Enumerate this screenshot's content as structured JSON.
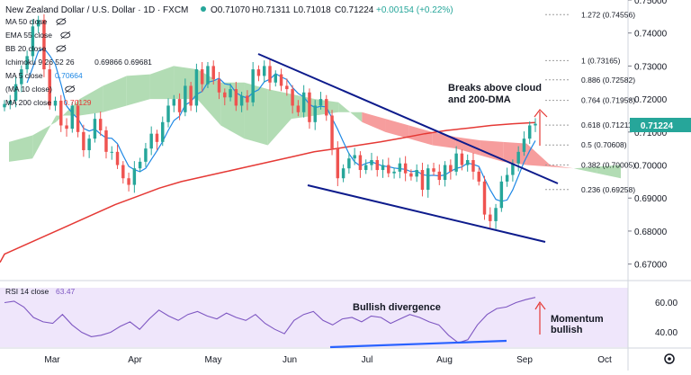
{
  "header": {
    "symbol": "New Zealand Dollar / U.S. Dollar · 1D · FXCM",
    "open": "O0.71070",
    "high": "H0.71311",
    "low": "L0.71018",
    "close": "C0.71224",
    "change": "+0.00154 (+0.22%)"
  },
  "indicators": [
    {
      "label": "MA 50 close",
      "value": ""
    },
    {
      "label": "EMA 55 close",
      "value": ""
    },
    {
      "label": "BB 20 close",
      "value": ""
    },
    {
      "label": "Ichimoku 9 26 52 26",
      "value": "0.69866  0.69681"
    },
    {
      "label": "MA 5 close",
      "value": "0.70664"
    },
    {
      "label": "(MA 10 close)",
      "value": ""
    },
    {
      "label": "MA 200 close",
      "value": "0.70129"
    }
  ],
  "price_badge": "0.71224",
  "price_axis": [
    "0.75000",
    "0.74000",
    "0.73000",
    "0.72000",
    "0.71000",
    "0.70000",
    "0.69000",
    "0.68000",
    "0.67000"
  ],
  "time_axis": [
    "Mar",
    "Apr",
    "May",
    "Jun",
    "Jul",
    "Aug",
    "Sep",
    "Oct"
  ],
  "fib_levels": [
    {
      "ratio": "1.272",
      "price": "0.74556"
    },
    {
      "ratio": "1",
      "price": "0.73165"
    },
    {
      "ratio": "0.886",
      "price": "0.72582"
    },
    {
      "ratio": "0.764",
      "price": "0.71958"
    },
    {
      "ratio": "0.618",
      "price": "0.71211"
    },
    {
      "ratio": "0.5",
      "price": "0.70608"
    },
    {
      "ratio": "0.382",
      "price": "0.70005"
    },
    {
      "ratio": "0.236",
      "price": "0.69258"
    }
  ],
  "annotations": {
    "breaks_line1": "Breaks above cloud",
    "breaks_line2": "and 200-DMA",
    "divergence": "Bullish divergence",
    "momentum_line1": "Momentum",
    "momentum_line2": "bullish"
  },
  "rsi": {
    "label": "RSI 14 close",
    "value": "63.47",
    "axis": [
      "60.00",
      "40.00"
    ]
  },
  "colors": {
    "up": "#26a69a",
    "down": "#ef5350",
    "ma200": "#e53935",
    "ma5": "#1e88e5",
    "trend": "#0d1b8c",
    "cloud_bull": "#a5d6a7",
    "cloud_bear": "#f48c8c",
    "rsi": "#7e57c2",
    "rsi_band": "#efe6fb",
    "div_line": "#2962ff"
  },
  "chart_data": {
    "type": "line",
    "ylim": [
      0.665,
      0.75
    ],
    "rsi_ylim": [
      30,
      70
    ],
    "close": [
      0.7185,
      0.7195,
      0.7245,
      0.729,
      0.733,
      0.742,
      0.744,
      0.729,
      0.718,
      0.7195,
      0.712,
      0.711,
      0.718,
      0.71,
      0.7045,
      0.708,
      0.714,
      0.7105,
      0.704,
      0.704,
      0.7,
      0.696,
      0.694,
      0.699,
      0.701,
      0.705,
      0.7095,
      0.707,
      0.713,
      0.718,
      0.72,
      0.716,
      0.724,
      0.718,
      0.729,
      0.7245,
      0.73,
      0.726,
      0.722,
      0.7205,
      0.723,
      0.718,
      0.721,
      0.719,
      0.729,
      0.727,
      0.73,
      0.725,
      0.7275,
      0.724,
      0.723,
      0.718,
      0.716,
      0.722,
      0.713,
      0.718,
      0.72,
      0.715,
      0.705,
      0.696,
      0.699,
      0.702,
      0.703,
      0.6985,
      0.7,
      0.7015,
      0.6985,
      0.7,
      0.6975,
      0.698,
      0.7005,
      0.6975,
      0.6965,
      0.6985,
      0.6925,
      0.699,
      0.698,
      0.6955,
      0.7,
      0.698,
      0.7035,
      0.7,
      0.7015,
      0.698,
      0.695,
      0.685,
      0.683,
      0.687,
      0.695,
      0.697,
      0.7005,
      0.704,
      0.708,
      0.712,
      0.7125
    ],
    "ma200": [
      0.673,
      0.676,
      0.679,
      0.682,
      0.685,
      0.688,
      0.6905,
      0.693,
      0.695,
      0.6965,
      0.698,
      0.6995,
      0.701,
      0.7025,
      0.704,
      0.705,
      0.706,
      0.707,
      0.7082,
      0.7095,
      0.7105,
      0.7112,
      0.712,
      0.7125,
      0.7129
    ],
    "rsi": [
      60,
      61,
      57,
      50,
      47,
      46,
      52,
      45,
      40,
      37,
      38,
      40,
      44,
      47,
      42,
      49,
      55,
      51,
      48,
      52,
      54,
      51,
      49,
      53,
      50,
      48,
      52,
      46,
      42,
      39,
      48,
      52,
      54,
      48,
      45,
      49,
      50,
      47,
      51,
      50,
      46,
      49,
      52,
      50,
      47,
      45,
      38,
      33,
      35,
      45,
      52,
      56,
      57,
      60,
      62,
      63.5
    ],
    "bullish_divergence": {
      "rsi_start": 33,
      "rsi_end": 35
    }
  }
}
